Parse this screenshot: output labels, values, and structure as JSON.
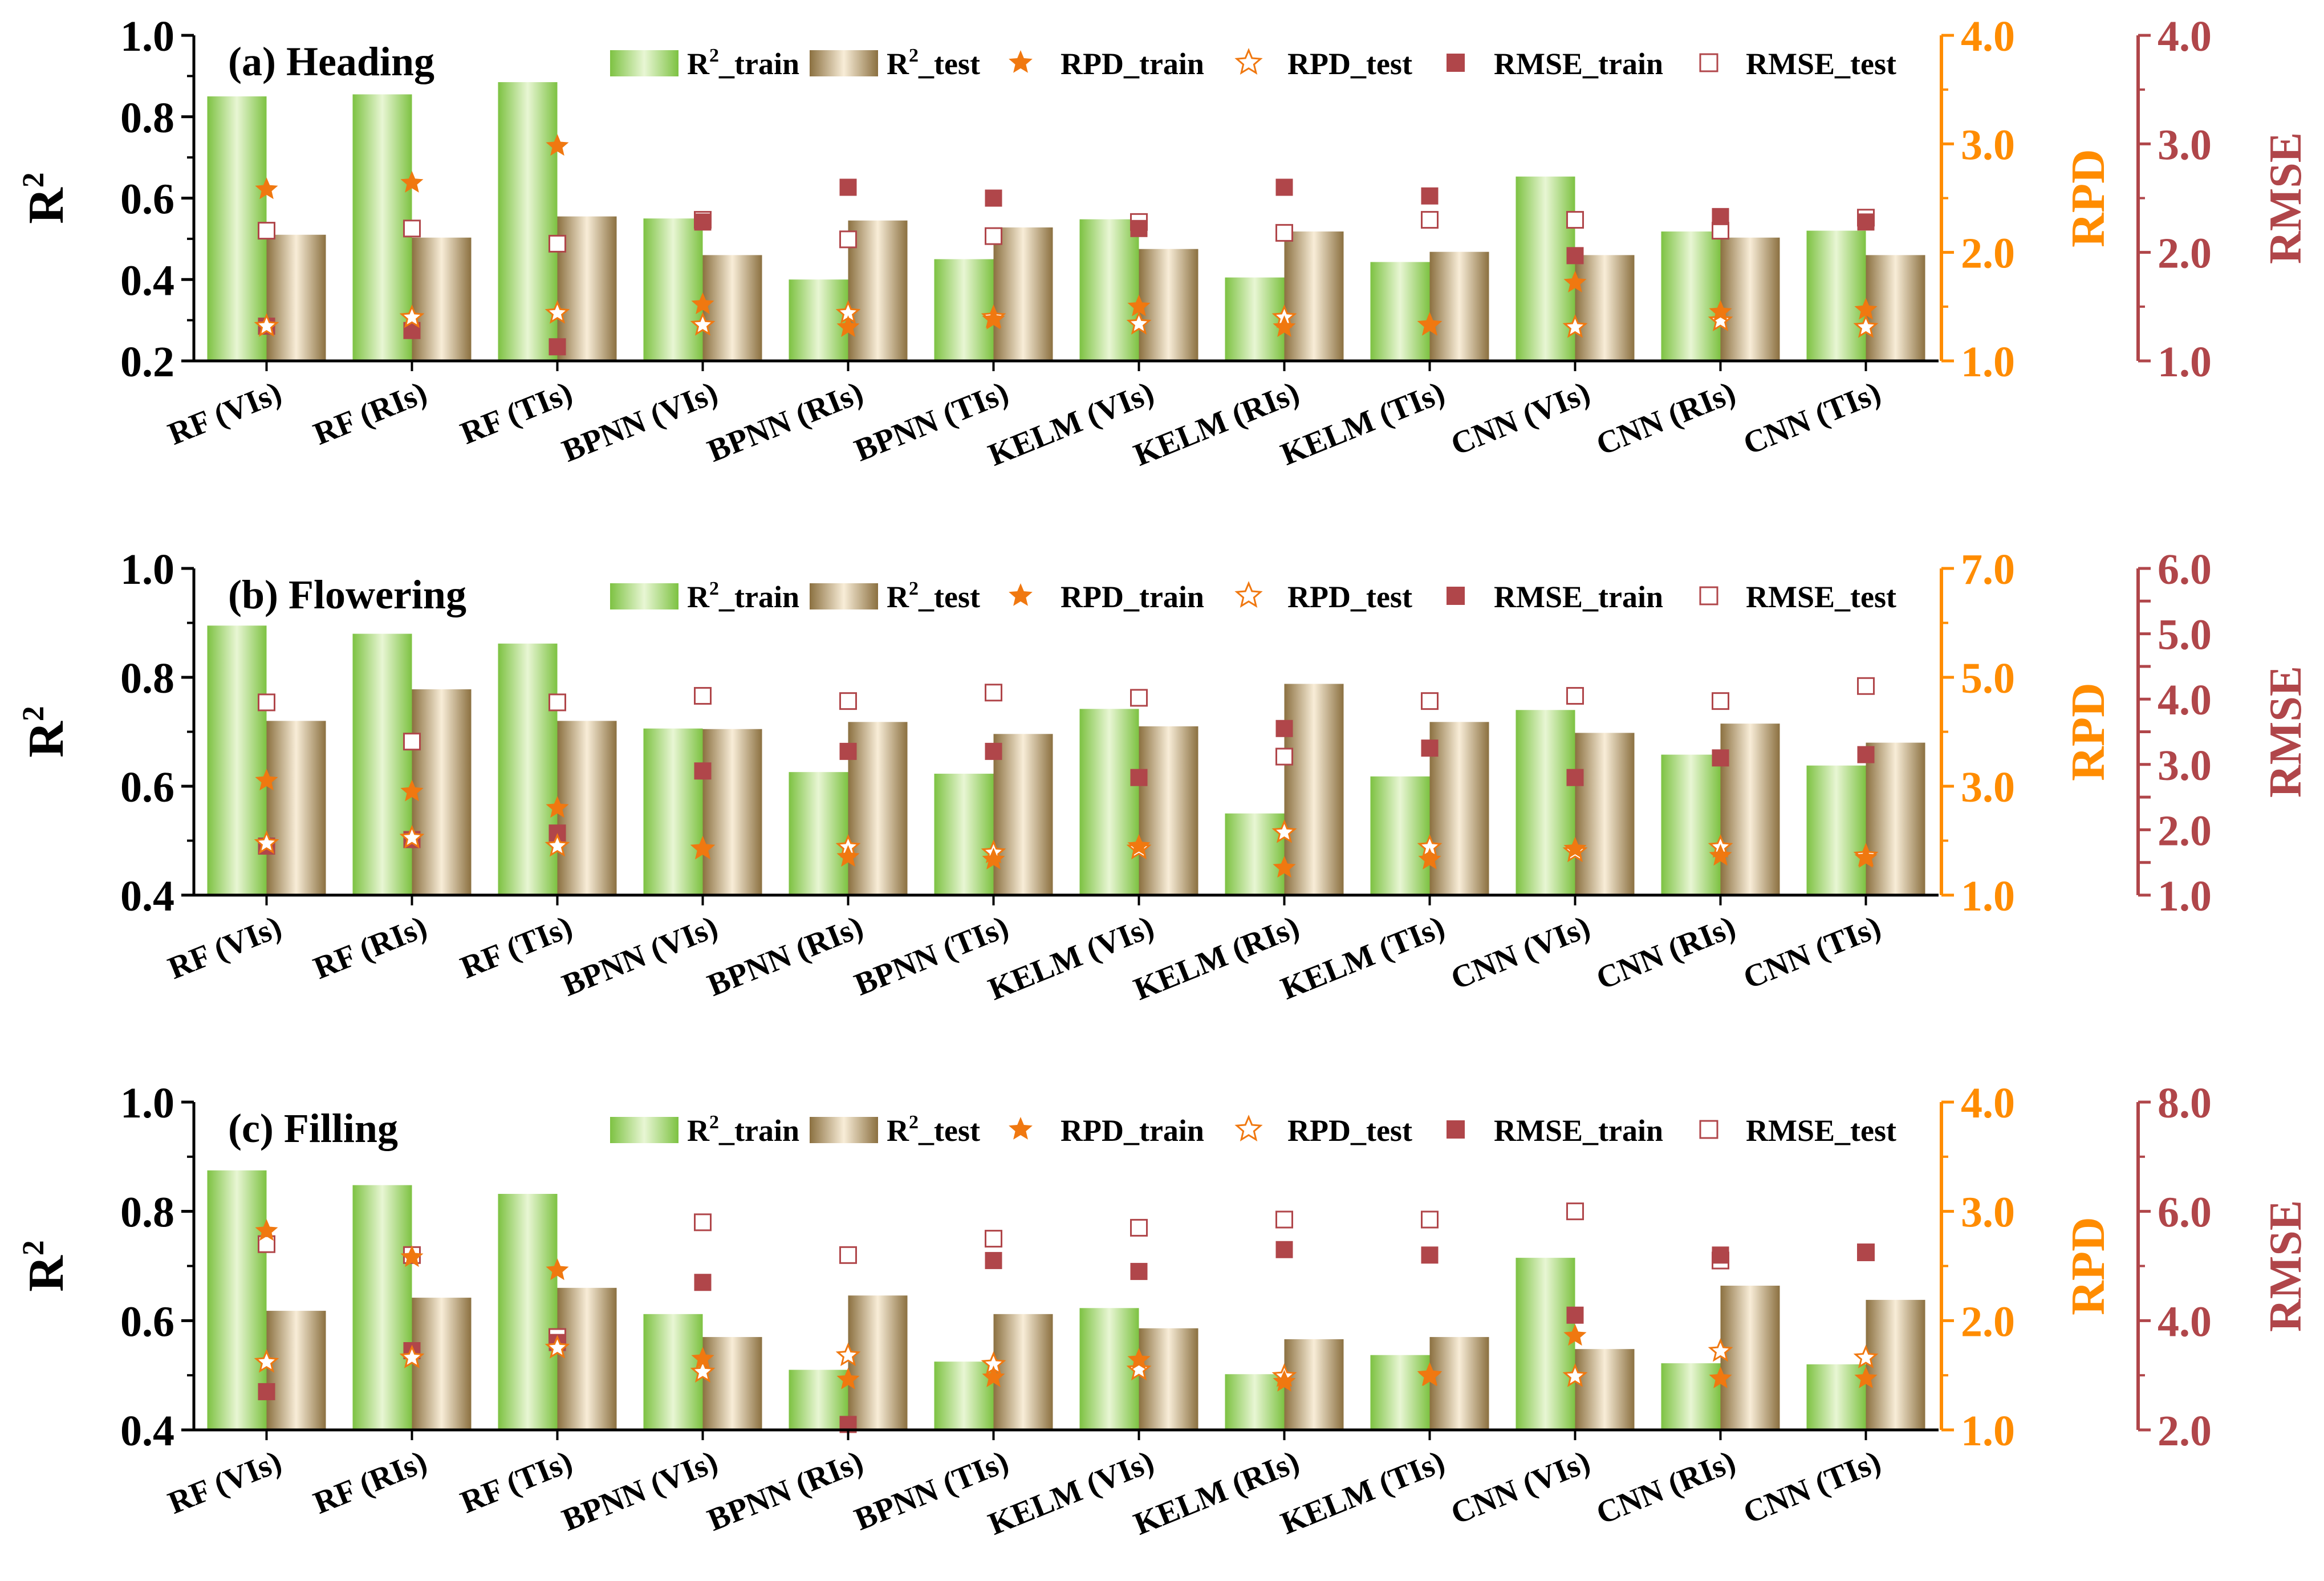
{
  "chart_data": [
    {
      "type": "bar",
      "title": "(a) Heading",
      "categories": [
        "RF (VIs)",
        "RF (RIs)",
        "RF (TIs)",
        "BPNN (VIs)",
        "BPNN (RIs)",
        "BPNN (TIs)",
        "KELM (VIs)",
        "KELM (RIs)",
        "KELM (TIs)",
        "CNN (VIs)",
        "CNN (RIs)",
        "CNN (TIs)"
      ],
      "y_left": {
        "label": "R",
        "label_sup": "2",
        "range": [
          0.2,
          1.0
        ],
        "ticks": [
          "0.2",
          "0.4",
          "0.6",
          "0.8",
          "1.0"
        ]
      },
      "y_rpd": {
        "label": "RPD",
        "range": [
          1.0,
          4.0
        ],
        "ticks": [
          "1.0",
          "2.0",
          "3.0",
          "4.0"
        ]
      },
      "y_rmse": {
        "label": "RMSE",
        "range": [
          1.0,
          4.0
        ],
        "ticks": [
          "1.0",
          "2.0",
          "3.0",
          "4.0"
        ]
      },
      "series": [
        {
          "name": "R2_train",
          "axis": "left",
          "values": [
            0.85,
            0.855,
            0.885,
            0.55,
            0.4,
            0.45,
            0.548,
            0.405,
            0.443,
            0.653,
            0.518,
            0.52
          ]
        },
        {
          "name": "R2_test",
          "axis": "left",
          "values": [
            0.51,
            0.503,
            0.555,
            0.46,
            0.545,
            0.528,
            0.475,
            0.518,
            0.468,
            0.46,
            0.503,
            0.46
          ]
        },
        {
          "name": "RPD_train",
          "axis": "rpd",
          "values": [
            2.58,
            2.64,
            2.98,
            1.52,
            1.31,
            1.38,
            1.5,
            1.31,
            1.33,
            1.72,
            1.45,
            1.47
          ]
        },
        {
          "name": "RPD_test",
          "axis": "rpd",
          "values": [
            1.32,
            1.4,
            1.44,
            1.33,
            1.44,
            1.4,
            1.34,
            1.4,
            1.33,
            1.31,
            1.37,
            1.31
          ]
        },
        {
          "name": "RMSE_train",
          "axis": "rmse",
          "values": [
            1.32,
            1.28,
            1.13,
            2.28,
            2.6,
            2.5,
            2.22,
            2.6,
            2.52,
            1.97,
            2.33,
            2.28
          ]
        },
        {
          "name": "RMSE_test",
          "axis": "rmse",
          "values": [
            2.2,
            2.22,
            2.08,
            2.3,
            2.12,
            2.15,
            2.28,
            2.18,
            2.3,
            2.3,
            2.2,
            2.32
          ]
        }
      ]
    },
    {
      "type": "bar",
      "title": "(b) Flowering",
      "categories": [
        "RF (VIs)",
        "RF (RIs)",
        "RF (TIs)",
        "BPNN (VIs)",
        "BPNN (RIs)",
        "BPNN (TIs)",
        "KELM (VIs)",
        "KELM (RIs)",
        "KELM (TIs)",
        "CNN (VIs)",
        "CNN (RIs)",
        "CNN (TIs)"
      ],
      "y_left": {
        "label": "R",
        "label_sup": "2",
        "range": [
          0.4,
          1.0
        ],
        "ticks": [
          "0.4",
          "0.6",
          "0.8",
          "1.0"
        ]
      },
      "y_rpd": {
        "label": "RPD",
        "range": [
          1.0,
          7.0
        ],
        "ticks": [
          "1.0",
          "3.0",
          "5.0",
          "7.0"
        ]
      },
      "y_rmse": {
        "label": "RMSE",
        "range": [
          1.0,
          6.0
        ],
        "ticks": [
          "1.0",
          "1.5",
          "2.0",
          "2.5",
          "3.0",
          "3.5",
          "4.0",
          "4.5",
          "5.0",
          "5.5",
          "6.0"
        ],
        "labelled_ticks": [
          "1.0",
          "2.0",
          "3.0",
          "4.0",
          "5.0",
          "6.0"
        ]
      },
      "series": [
        {
          "name": "R2_train",
          "axis": "left",
          "values": [
            0.895,
            0.88,
            0.862,
            0.706,
            0.626,
            0.623,
            0.742,
            0.55,
            0.618,
            0.74,
            0.658,
            0.638
          ]
        },
        {
          "name": "R2_test",
          "axis": "left",
          "values": [
            0.72,
            0.778,
            0.72,
            0.705,
            0.718,
            0.696,
            0.71,
            0.788,
            0.718,
            0.698,
            0.715,
            0.68
          ]
        },
        {
          "name": "RPD_train",
          "axis": "rpd",
          "values": [
            3.1,
            2.9,
            2.6,
            1.85,
            1.7,
            1.65,
            1.9,
            1.5,
            1.65,
            1.85,
            1.72,
            1.68
          ]
        },
        {
          "name": "RPD_test",
          "axis": "rpd",
          "values": [
            1.95,
            2.05,
            1.9,
            1.85,
            1.88,
            1.78,
            1.85,
            2.15,
            1.88,
            1.8,
            1.88,
            1.72
          ]
        },
        {
          "name": "RMSE_train",
          "axis": "rmse",
          "values": [
            1.75,
            1.85,
            1.95,
            2.9,
            3.2,
            3.2,
            2.8,
            3.55,
            3.25,
            2.8,
            3.1,
            3.15
          ]
        },
        {
          "name": "RMSE_test",
          "axis": "rmse",
          "values": [
            3.95,
            3.35,
            3.95,
            4.05,
            3.97,
            4.1,
            4.02,
            3.12,
            3.97,
            4.05,
            3.97,
            4.2
          ]
        }
      ]
    },
    {
      "type": "bar",
      "title": "(c) Filling",
      "categories": [
        "RF (VIs)",
        "RF (RIs)",
        "RF (TIs)",
        "BPNN (VIs)",
        "BPNN (RIs)",
        "BPNN (TIs)",
        "KELM (VIs)",
        "KELM (RIs)",
        "KELM (TIs)",
        "CNN (VIs)",
        "CNN (RIs)",
        "CNN (TIs)"
      ],
      "y_left": {
        "label": "R",
        "label_sup": "2",
        "range": [
          0.4,
          1.0
        ],
        "ticks": [
          "0.4",
          "0.6",
          "0.8",
          "1.0"
        ]
      },
      "y_rpd": {
        "label": "RPD",
        "range": [
          1.0,
          4.0
        ],
        "ticks": [
          "1.0",
          "2.0",
          "3.0",
          "4.0"
        ]
      },
      "y_rmse": {
        "label": "RMSE",
        "range": [
          2.0,
          8.0
        ],
        "ticks": [
          "2.0",
          "4.0",
          "6.0",
          "8.0"
        ]
      },
      "series": [
        {
          "name": "R2_train",
          "axis": "left",
          "values": [
            0.875,
            0.848,
            0.832,
            0.612,
            0.51,
            0.525,
            0.623,
            0.502,
            0.537,
            0.715,
            0.522,
            0.52
          ]
        },
        {
          "name": "R2_test",
          "axis": "left",
          "values": [
            0.618,
            0.642,
            0.66,
            0.57,
            0.646,
            0.612,
            0.586,
            0.566,
            0.57,
            0.548,
            0.664,
            0.638
          ]
        },
        {
          "name": "RPD_train",
          "axis": "rpd",
          "values": [
            2.82,
            2.58,
            2.46,
            1.65,
            1.46,
            1.48,
            1.64,
            1.44,
            1.49,
            1.86,
            1.47,
            1.47
          ]
        },
        {
          "name": "RPD_test",
          "axis": "rpd",
          "values": [
            1.62,
            1.66,
            1.75,
            1.53,
            1.68,
            1.6,
            1.55,
            1.49,
            1.5,
            1.49,
            1.72,
            1.66
          ]
        },
        {
          "name": "RMSE_train",
          "axis": "rmse",
          "values": [
            2.7,
            3.45,
            3.6,
            4.7,
            2.1,
            5.1,
            4.9,
            5.3,
            5.2,
            4.1,
            5.2,
            5.25
          ]
        },
        {
          "name": "RMSE_test",
          "axis": "rmse",
          "values": [
            5.4,
            5.2,
            3.7,
            5.8,
            5.2,
            5.5,
            5.7,
            5.85,
            5.85,
            6.0,
            5.1,
            5.25
          ]
        }
      ]
    }
  ],
  "legend": {
    "r2_train": "R",
    "r2_test": "R",
    "sup": "2",
    "r2_train_suffix": "_train",
    "r2_test_suffix": "_test",
    "rpd_train": "RPD_train",
    "rpd_test": "RPD_test",
    "rmse_train": "RMSE_train",
    "rmse_test": "RMSE_test"
  },
  "colors": {
    "axis": "#000000",
    "rpd_axis": "#FF8C00",
    "rmse_axis": "#B0464A",
    "r2_train_edge": "#7DC242",
    "r2_train_center": "#E8F6D4",
    "r2_test_edge": "#8B7040",
    "r2_test_center": "#F8EDD8",
    "rpd_star": "#F07810",
    "rmse_square": "#B0464A"
  }
}
